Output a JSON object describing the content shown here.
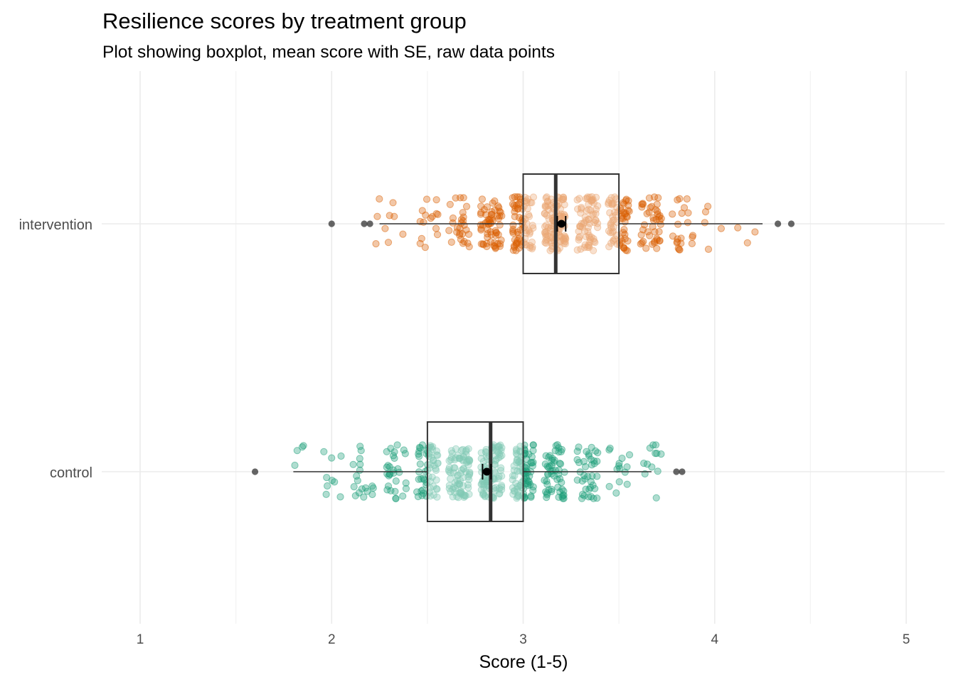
{
  "chart_data": {
    "type": "boxplot",
    "title": "Resilience scores by treatment group",
    "subtitle": "Plot showing boxplot, mean score with SE, raw data points",
    "xlabel": "Score (1-5)",
    "ylabel": "",
    "xlim": [
      0.9,
      5.2
    ],
    "x_ticks": [
      "1",
      "2",
      "3",
      "4",
      "5"
    ],
    "grid": true,
    "legend": "none",
    "groups": [
      {
        "label": "intervention",
        "color": "#D95F02",
        "n_points": 500,
        "box": {
          "whisker_low": 2.25,
          "q1": 3.0,
          "median": 3.17,
          "q3": 3.5,
          "whisker_high": 4.25
        },
        "outliers": [
          2.0,
          2.17,
          2.2,
          4.33,
          4.4
        ],
        "mean": 3.2,
        "se": 0.022
      },
      {
        "label": "control",
        "color": "#1B9E77",
        "n_points": 500,
        "box": {
          "whisker_low": 1.8,
          "q1": 2.5,
          "median": 2.83,
          "q3": 3.0,
          "whisker_high": 3.67
        },
        "outliers": [
          1.6,
          3.8,
          3.83
        ],
        "mean": 2.81,
        "se": 0.022
      }
    ]
  }
}
